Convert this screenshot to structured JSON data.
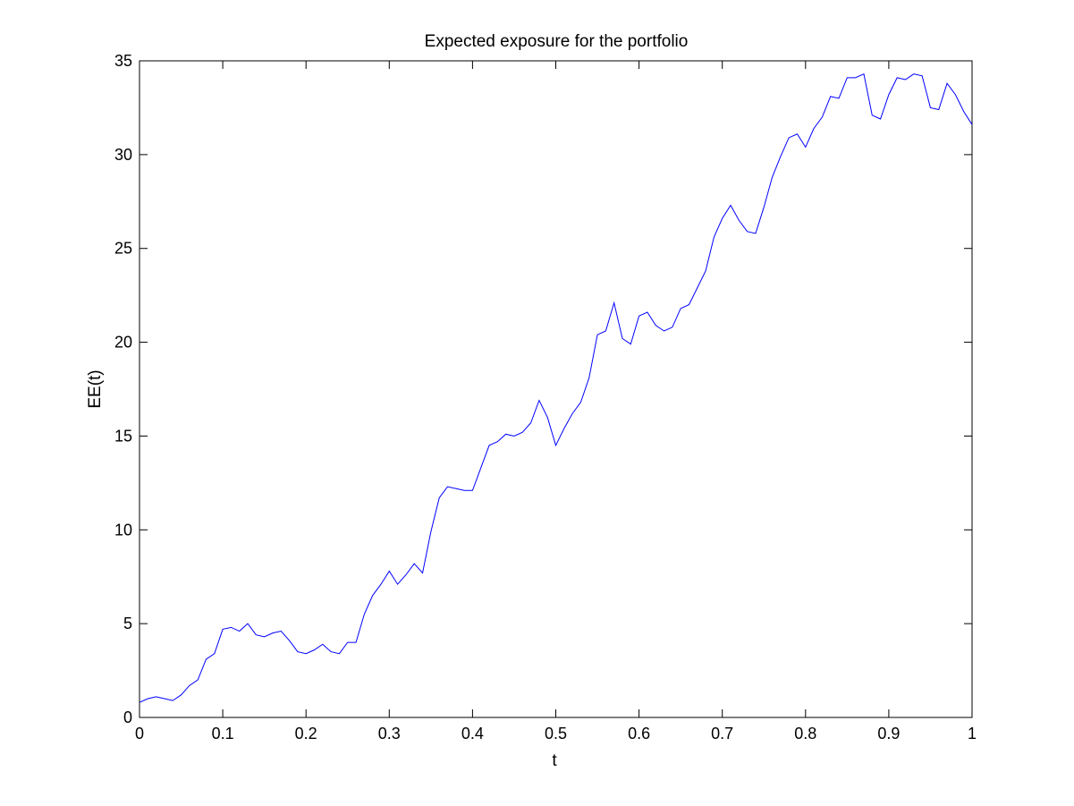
{
  "chart_data": {
    "type": "line",
    "title": "Expected exposure for the portfolio",
    "xlabel": "t",
    "ylabel": "EE(t)",
    "xlim": [
      0,
      1
    ],
    "ylim": [
      0,
      35
    ],
    "grid": false,
    "legend": "none",
    "x_ticks": [
      0,
      0.1,
      0.2,
      0.3,
      0.4,
      0.5,
      0.6,
      0.7,
      0.8,
      0.9,
      1
    ],
    "x_tick_labels": [
      "0",
      "0.1",
      "0.2",
      "0.3",
      "0.4",
      "0.5",
      "0.6",
      "0.7",
      "0.8",
      "0.9",
      "1"
    ],
    "y_ticks": [
      0,
      5,
      10,
      15,
      20,
      25,
      30,
      35
    ],
    "y_tick_labels": [
      "0",
      "5",
      "10",
      "15",
      "20",
      "25",
      "30",
      "35"
    ],
    "series": [
      {
        "color": "#0000ff",
        "x": [
          0,
          0.01,
          0.02,
          0.03,
          0.04,
          0.05,
          0.06,
          0.07,
          0.08,
          0.09,
          0.1,
          0.11,
          0.12,
          0.13,
          0.14,
          0.15,
          0.16,
          0.17,
          0.18,
          0.19,
          0.2,
          0.21,
          0.22,
          0.23,
          0.24,
          0.25,
          0.26,
          0.27,
          0.28,
          0.29,
          0.3,
          0.31,
          0.32,
          0.33,
          0.34,
          0.35,
          0.36,
          0.37,
          0.38,
          0.39,
          0.4,
          0.41,
          0.42,
          0.43,
          0.44,
          0.45,
          0.46,
          0.47,
          0.48,
          0.49,
          0.5,
          0.51,
          0.52,
          0.53,
          0.54,
          0.55,
          0.56,
          0.57,
          0.58,
          0.59,
          0.6,
          0.61,
          0.62,
          0.63,
          0.64,
          0.65,
          0.66,
          0.67,
          0.68,
          0.69,
          0.7,
          0.71,
          0.72,
          0.73,
          0.74,
          0.75,
          0.76,
          0.77,
          0.78,
          0.79,
          0.8,
          0.81,
          0.82,
          0.83,
          0.84,
          0.85,
          0.86,
          0.87,
          0.88,
          0.89,
          0.9,
          0.91,
          0.92,
          0.93,
          0.94,
          0.95,
          0.96,
          0.97,
          0.98,
          0.99,
          1.0
        ],
        "y": [
          0.8,
          1.0,
          1.1,
          1.0,
          0.9,
          1.2,
          1.7,
          2.0,
          3.1,
          3.4,
          4.7,
          4.8,
          4.6,
          5.0,
          4.4,
          4.3,
          4.5,
          4.6,
          4.1,
          3.5,
          3.4,
          3.6,
          3.9,
          3.5,
          3.4,
          4.0,
          4.0,
          5.5,
          6.5,
          7.1,
          7.8,
          7.1,
          7.6,
          8.2,
          7.7,
          9.9,
          11.7,
          12.3,
          12.2,
          12.1,
          12.1,
          13.3,
          14.5,
          14.7,
          15.1,
          15.0,
          15.2,
          15.7,
          16.9,
          16.0,
          14.5,
          15.4,
          16.2,
          16.8,
          18.1,
          20.4,
          20.6,
          22.1,
          20.2,
          19.9,
          21.4,
          21.6,
          20.9,
          20.6,
          20.8,
          21.8,
          22.0,
          22.9,
          23.8,
          25.6,
          26.6,
          27.3,
          26.5,
          25.9,
          25.8,
          27.2,
          28.8,
          29.9,
          30.9,
          31.1,
          30.4,
          31.4,
          32.0,
          33.1,
          33.0,
          34.1,
          34.1,
          34.3,
          32.1,
          31.9,
          33.2,
          34.1,
          34.0,
          34.3,
          34.2,
          32.5,
          32.4,
          33.8,
          33.2,
          32.3,
          31.6
        ]
      }
    ]
  }
}
